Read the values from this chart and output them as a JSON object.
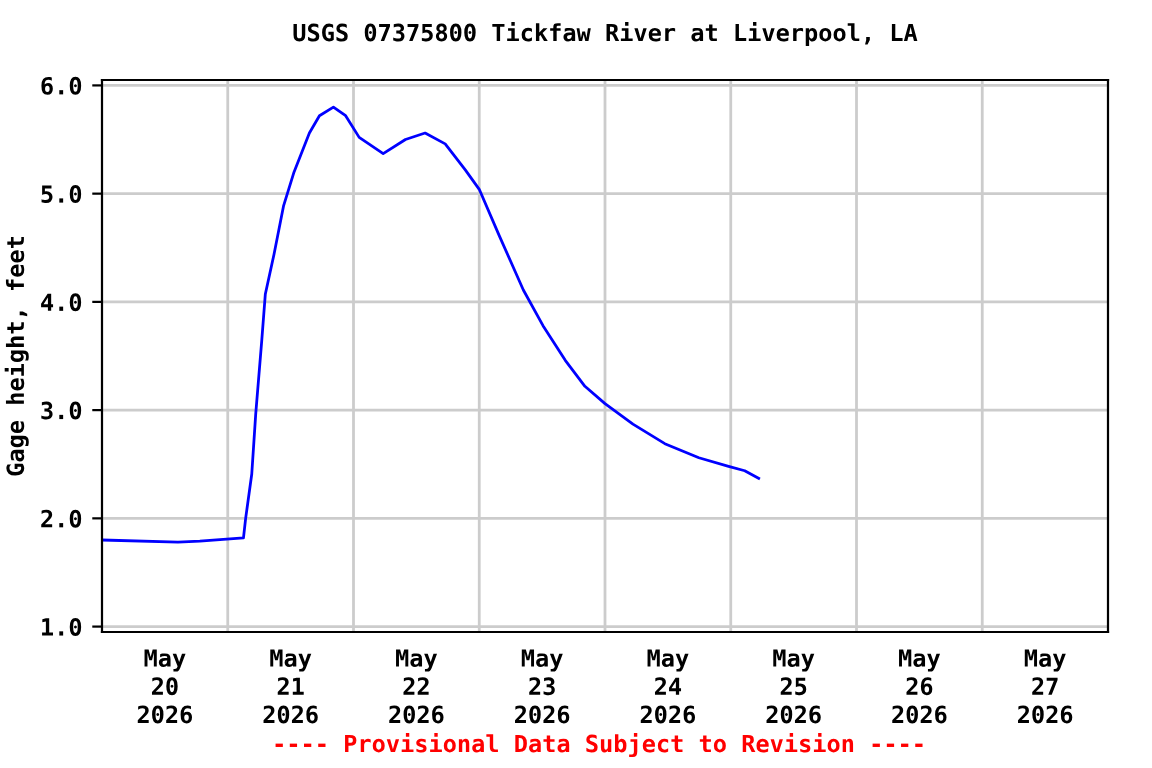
{
  "chart_data": {
    "type": "line",
    "title": "USGS 07375800 Tickfaw River at Liverpool, LA",
    "ylabel": "Gage height, feet",
    "x": [
      "2026-05-20T00:00",
      "2026-05-20T14:30",
      "2026-05-20T18:40",
      "2026-05-21T03:00",
      "2026-05-21T03:25",
      "2026-05-21T04:35",
      "2026-05-21T05:20",
      "2026-05-21T06:30",
      "2026-05-21T07:10",
      "2026-05-21T08:50",
      "2026-05-21T10:40",
      "2026-05-21T12:35",
      "2026-05-21T15:35",
      "2026-05-21T17:30",
      "2026-05-21T20:10",
      "2026-05-21T22:30",
      "2026-05-22T01:05",
      "2026-05-22T05:40",
      "2026-05-22T09:55",
      "2026-05-22T13:40",
      "2026-05-22T17:30",
      "2026-05-22T21:20",
      "2026-05-23T00:00",
      "2026-05-23T03:50",
      "2026-05-23T08:25",
      "2026-05-23T12:10",
      "2026-05-23T16:25",
      "2026-05-23T20:10",
      "2026-05-24T00:00",
      "2026-05-24T05:20",
      "2026-05-24T11:25",
      "2026-05-24T17:55",
      "2026-05-24T23:35",
      "2026-05-25T02:40",
      "2026-05-25T05:20"
    ],
    "series": [
      {
        "color": "#0000ff",
        "values": [
          1.8,
          1.78,
          1.79,
          1.82,
          2.0,
          2.41,
          2.96,
          3.65,
          4.07,
          4.44,
          4.89,
          5.19,
          5.56,
          5.72,
          5.8,
          5.72,
          5.52,
          5.37,
          5.5,
          5.56,
          5.46,
          5.22,
          5.04,
          4.61,
          4.11,
          3.78,
          3.46,
          3.22,
          3.06,
          2.87,
          2.69,
          2.56,
          2.48,
          2.44,
          2.37
        ]
      }
    ],
    "xlim": [
      "2026-05-20T00:00",
      "2026-05-28T00:00"
    ],
    "xticks": [
      {
        "value": "2026-05-20T12:00",
        "label": "May\n20\n2026"
      },
      {
        "value": "2026-05-21T00:00",
        "label": null
      },
      {
        "value": "2026-05-21T12:00",
        "label": "May\n21\n2026"
      },
      {
        "value": "2026-05-22T00:00",
        "label": null
      },
      {
        "value": "2026-05-22T12:00",
        "label": "May\n22\n2026"
      },
      {
        "value": "2026-05-23T00:00",
        "label": null
      },
      {
        "value": "2026-05-23T12:00",
        "label": "May\n23\n2026"
      },
      {
        "value": "2026-05-24T00:00",
        "label": null
      },
      {
        "value": "2026-05-24T12:00",
        "label": "May\n24\n2026"
      },
      {
        "value": "2026-05-25T00:00",
        "label": null
      },
      {
        "value": "2026-05-25T12:00",
        "label": "May\n25\n2026"
      },
      {
        "value": "2026-05-26T00:00",
        "label": null
      },
      {
        "value": "2026-05-26T12:00",
        "label": "May\n26\n2026"
      },
      {
        "value": "2026-05-27T00:00",
        "label": null
      },
      {
        "value": "2026-05-27T12:00",
        "label": "May\n27\n2026"
      }
    ],
    "ylim": [
      0.95,
      6.05
    ],
    "yticks": [
      {
        "value": 1,
        "label": "1.0"
      },
      {
        "value": 2,
        "label": "2.0"
      },
      {
        "value": 3,
        "label": "3.0"
      },
      {
        "value": 4,
        "label": "4.0"
      },
      {
        "value": 5,
        "label": "5.0"
      },
      {
        "value": 6,
        "label": "6.0"
      }
    ],
    "grid": true,
    "line_style": "solid",
    "legend": false,
    "annotations": [
      "---- Provisional Data Subject to Revision ----"
    ]
  }
}
